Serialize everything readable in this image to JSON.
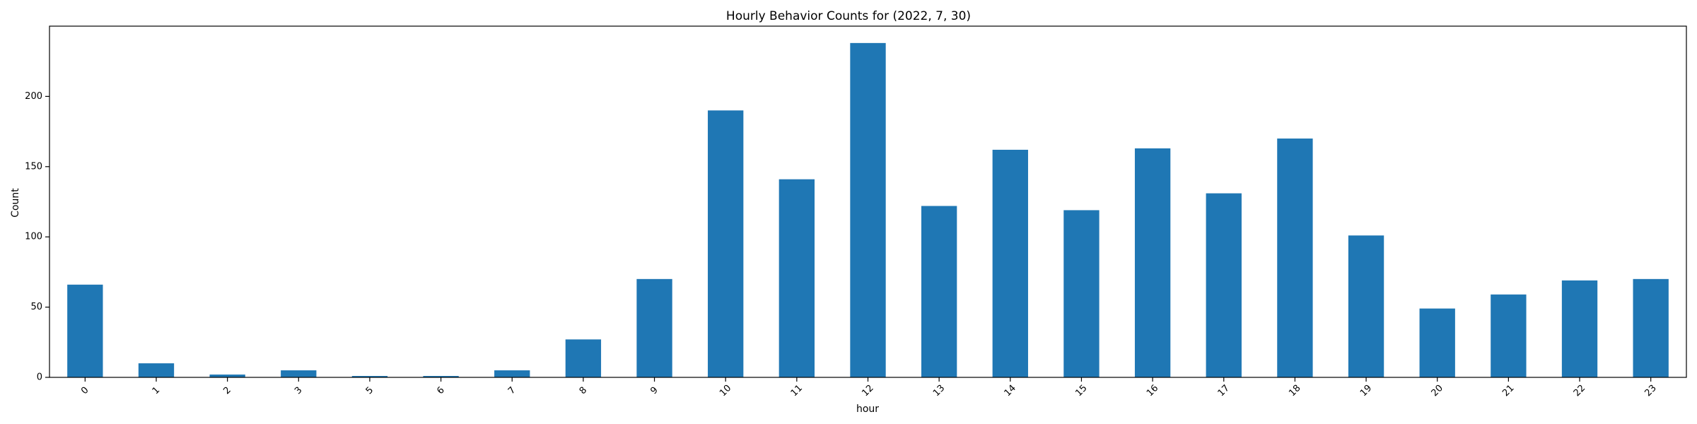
{
  "chart_data": {
    "type": "bar",
    "title": "Hourly Behavior Counts for (2022, 7, 30)",
    "xlabel": "hour",
    "ylabel": "Count",
    "categories": [
      "0",
      "1",
      "2",
      "3",
      "5",
      "6",
      "7",
      "8",
      "9",
      "10",
      "11",
      "12",
      "13",
      "14",
      "15",
      "16",
      "17",
      "18",
      "19",
      "20",
      "21",
      "22",
      "23"
    ],
    "values": [
      66,
      10,
      2,
      5,
      1,
      1,
      5,
      27,
      70,
      190,
      141,
      238,
      122,
      162,
      119,
      163,
      131,
      170,
      101,
      49,
      59,
      69,
      70
    ],
    "ylim": [
      0,
      250
    ],
    "yticks": [
      0,
      50,
      100,
      150,
      200
    ],
    "bar_color": "#1f77b4",
    "grid": false,
    "legend": "none"
  }
}
